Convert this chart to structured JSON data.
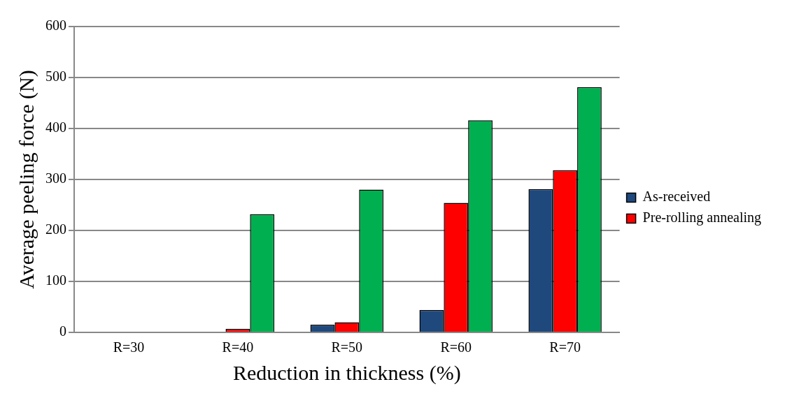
{
  "chart_data": {
    "type": "bar",
    "xlabel": "Reduction in thickness (%)",
    "ylabel": "Average peeling force (N)",
    "categories": [
      "R=30",
      "R=40",
      "R=50",
      "R=60",
      "R=70"
    ],
    "series": [
      {
        "name": "As-received",
        "color": "#1f497d",
        "values": [
          null,
          null,
          15,
          44,
          281
        ]
      },
      {
        "name": "Pre-rolling annealing",
        "color": "#ff0000",
        "values": [
          null,
          7,
          20,
          254,
          318
        ]
      },
      {
        "color": "#00b050",
        "values": [
          null,
          232,
          280,
          416,
          481
        ]
      }
    ],
    "ylim": [
      0,
      600
    ],
    "yticks": [
      0,
      100,
      200,
      300,
      400,
      500,
      600
    ],
    "grid": "y",
    "legend": "right"
  }
}
